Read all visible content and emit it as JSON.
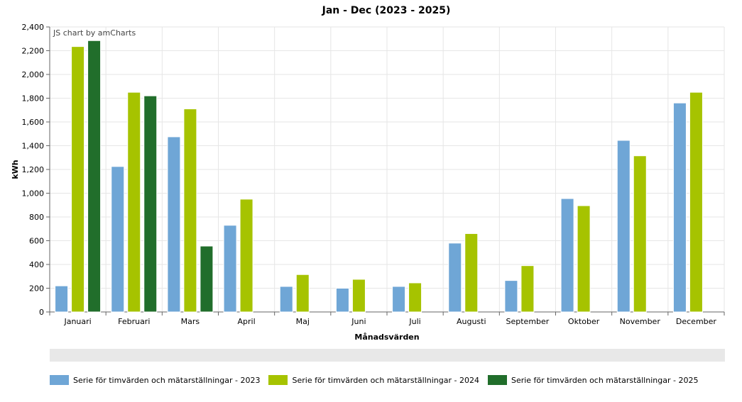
{
  "chart_data": {
    "type": "bar",
    "title": "Jan - Dec (2023 - 2025)",
    "credit": "JS chart by amCharts",
    "xlabel": "Månadsvärden",
    "ylabel": "kWh",
    "ylim": [
      0,
      2400
    ],
    "ytick_step": 200,
    "ytick_labels": [
      "0",
      "200",
      "400",
      "600",
      "800",
      "1,000",
      "1,200",
      "1,400",
      "1,600",
      "1,800",
      "2,000",
      "2,200",
      "2,400"
    ],
    "grid": true,
    "legend_position": "bottom-left",
    "categories": [
      "Januari",
      "Februari",
      "Mars",
      "April",
      "Maj",
      "Juni",
      "Juli",
      "Augusti",
      "September",
      "Oktober",
      "November",
      "December"
    ],
    "series": [
      {
        "name": "Serie för timvärden och mätarställningar - 2023",
        "color": "#6fa6d6",
        "values": [
          220,
          1225,
          1475,
          730,
          215,
          200,
          215,
          580,
          265,
          955,
          1445,
          1760
        ]
      },
      {
        "name": "Serie för timvärden och mätarställningar - 2024",
        "color": "#a6c300",
        "values": [
          2235,
          1850,
          1710,
          950,
          315,
          275,
          245,
          660,
          390,
          895,
          1315,
          1850
        ]
      },
      {
        "name": "Serie för timvärden och mätarställningar - 2025",
        "color": "#216e2b",
        "values": [
          2285,
          1820,
          555,
          null,
          null,
          null,
          null,
          null,
          null,
          null,
          null,
          null
        ]
      }
    ]
  }
}
